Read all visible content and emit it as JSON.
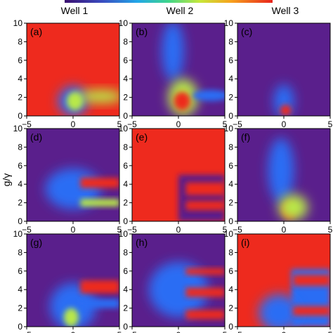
{
  "figure": {
    "column_titles": [
      "Well 1",
      "Well 2",
      "Well 3"
    ],
    "y_axis_label": "g/γ",
    "colors": {
      "low": "#5a1f8c",
      "mid_blue": "#2a6df4",
      "mid_green": "#b8e84a",
      "high": "#ee2a1e"
    }
  },
  "chart_data": {
    "type": "heatmap",
    "x_range": [
      -5,
      5
    ],
    "y_range": [
      0,
      10
    ],
    "x_ticks": [
      "−5",
      "0",
      "5"
    ],
    "y_ticks": [
      "0",
      "2",
      "4",
      "6",
      "8",
      "10"
    ],
    "colorbar": "rainbow (purple = low, red = high)",
    "panels": [
      {
        "label": "(a)",
        "column": "Well 1",
        "background": "high"
      },
      {
        "label": "(b)",
        "column": "Well 2",
        "background": "low"
      },
      {
        "label": "(c)",
        "column": "Well 3",
        "background": "low"
      },
      {
        "label": "(d)",
        "column": "Well 1",
        "background": "low"
      },
      {
        "label": "(e)",
        "column": "Well 2",
        "background": "high"
      },
      {
        "label": "(f)",
        "column": "Well 3",
        "background": "low"
      },
      {
        "label": "(g)",
        "column": "Well 1",
        "background": "low"
      },
      {
        "label": "(h)",
        "column": "Well 2",
        "background": "low"
      },
      {
        "label": "(i)",
        "column": "Well 3",
        "background": "high"
      }
    ]
  }
}
